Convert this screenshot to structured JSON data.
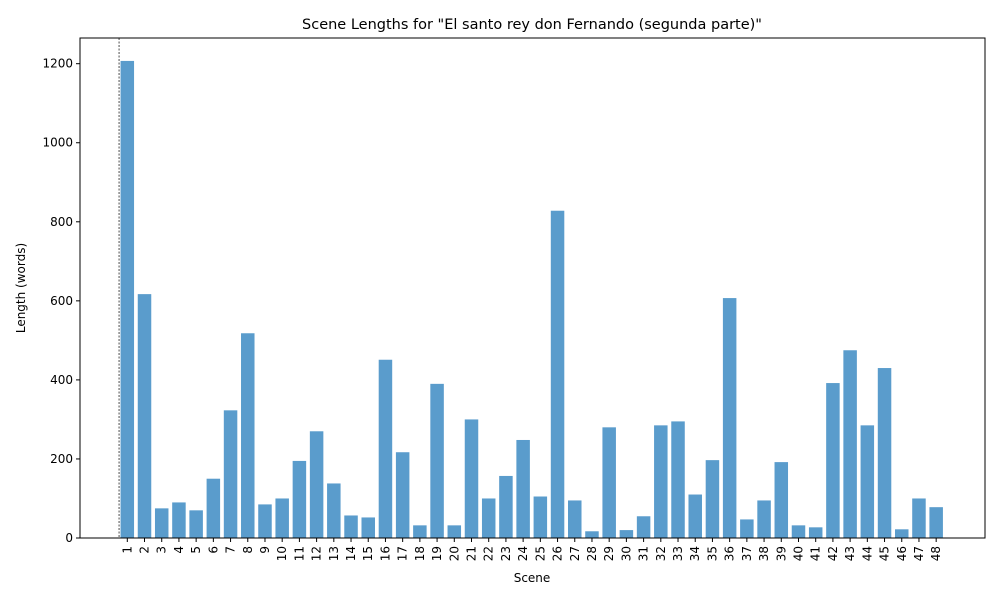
{
  "chart_data": {
    "type": "bar",
    "title": "Scene Lengths for \"El santo rey don Fernando (segunda parte)\"",
    "xlabel": "Scene",
    "ylabel": "Length (words)",
    "ylim": [
      0,
      1265
    ],
    "yticks": [
      0,
      200,
      400,
      600,
      800,
      1000,
      1200
    ],
    "categories": [
      "1",
      "2",
      "3",
      "4",
      "5",
      "6",
      "7",
      "8",
      "9",
      "10",
      "11",
      "12",
      "13",
      "14",
      "15",
      "16",
      "17",
      "18",
      "19",
      "20",
      "21",
      "22",
      "23",
      "24",
      "25",
      "26",
      "27",
      "28",
      "29",
      "30",
      "31",
      "32",
      "33",
      "34",
      "35",
      "36",
      "37",
      "38",
      "39",
      "40",
      "41",
      "42",
      "43",
      "44",
      "45",
      "46",
      "47",
      "48"
    ],
    "values": [
      1207,
      617,
      75,
      90,
      70,
      150,
      323,
      518,
      85,
      100,
      195,
      270,
      138,
      57,
      52,
      451,
      217,
      32,
      390,
      32,
      300,
      100,
      157,
      248,
      105,
      828,
      95,
      17,
      280,
      20,
      55,
      285,
      295,
      110,
      197,
      607,
      47,
      95,
      192,
      32,
      27,
      392,
      475,
      285,
      430,
      22,
      100,
      78
    ],
    "grid": false,
    "bar_color": "#5a9ccc",
    "marker_line": {
      "x_category": "1",
      "style": "dashed",
      "color": "#000000"
    }
  }
}
